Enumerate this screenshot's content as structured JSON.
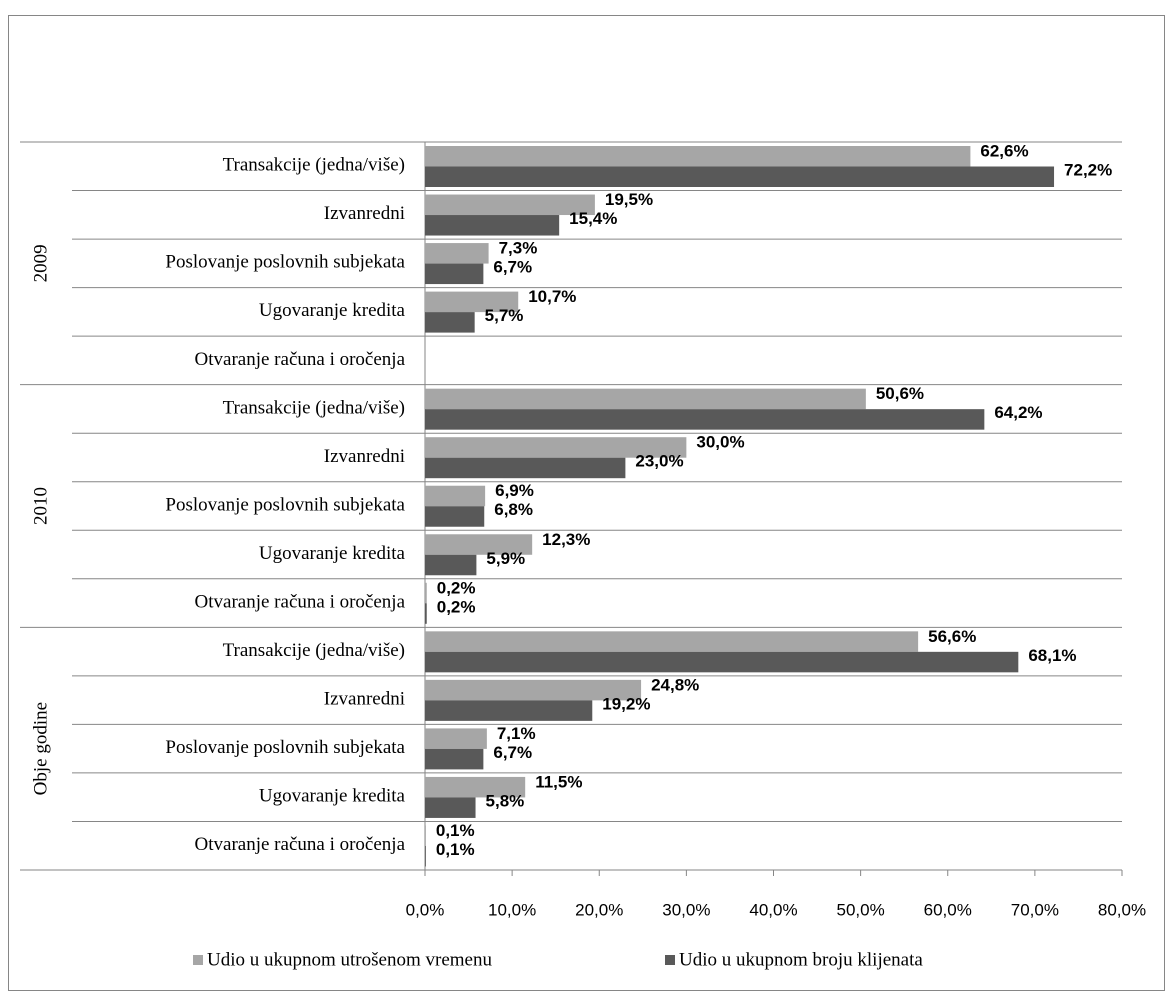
{
  "chart_data": {
    "type": "bar",
    "orientation": "horizontal",
    "groups": [
      {
        "label": "2009",
        "categories": [
          "Transakcije (jedna/više)",
          "Izvanredni",
          "Poslovanje poslovnih subjekata",
          "Ugovaranje kredita",
          "Otvaranje računa i oročenja"
        ]
      },
      {
        "label": "2010",
        "categories": [
          "Transakcije (jedna/više)",
          "Izvanredni",
          "Poslovanje poslovnih subjekata",
          "Ugovaranje kredita",
          "Otvaranje računa i oročenja"
        ]
      },
      {
        "label": "Obje godine",
        "categories": [
          "Transakcije (jedna/više)",
          "Izvanredni",
          "Poslovanje poslovnih subjekata",
          "Ugovaranje kredita",
          "Otvaranje računa i oročenja"
        ]
      }
    ],
    "series": [
      {
        "name": "Udio u ukupnom utrošenom vremenu",
        "color": "#a6a6a6",
        "values": [
          62.6,
          19.5,
          7.3,
          10.7,
          null,
          50.6,
          30.0,
          6.9,
          12.3,
          0.2,
          56.6,
          24.8,
          7.1,
          11.5,
          0.1
        ],
        "value_labels": [
          "62,6%",
          "19,5%",
          "7,3%",
          "10,7%",
          null,
          "50,6%",
          "30,0%",
          "6,9%",
          "12,3%",
          "0,2%",
          "56,6%",
          "24,8%",
          "7,1%",
          "11,5%",
          "0,1%"
        ]
      },
      {
        "name": "Udio u ukupnom broju klijenata",
        "color": "#595959",
        "values": [
          72.2,
          15.4,
          6.7,
          5.7,
          null,
          64.2,
          23.0,
          6.8,
          5.9,
          0.2,
          68.1,
          19.2,
          6.7,
          5.8,
          0.1
        ],
        "value_labels": [
          "72,2%",
          "15,4%",
          "6,7%",
          "5,7%",
          null,
          "64,2%",
          "23,0%",
          "6,8%",
          "5,9%",
          "0,2%",
          "68,1%",
          "19,2%",
          "6,7%",
          "5,8%",
          "0,1%"
        ]
      }
    ],
    "xlim": [
      0,
      80
    ],
    "xticks": [
      {
        "value": 0,
        "label": "0,0%"
      },
      {
        "value": 10,
        "label": "10,0%"
      },
      {
        "value": 20,
        "label": "20,0%"
      },
      {
        "value": 30,
        "label": "30,0%"
      },
      {
        "value": 40,
        "label": "40,0%"
      },
      {
        "value": 50,
        "label": "50,0%"
      },
      {
        "value": 60,
        "label": "60,0%"
      },
      {
        "value": 70,
        "label": "70,0%"
      },
      {
        "value": 80,
        "label": "80,0%"
      }
    ],
    "legend": "bottom"
  }
}
